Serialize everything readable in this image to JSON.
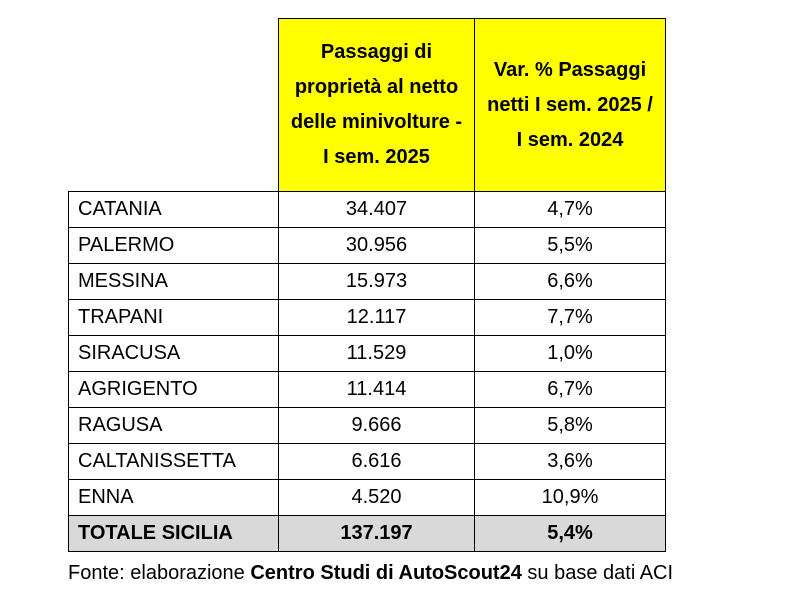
{
  "table": {
    "headers": [
      "Passaggi di proprietà al netto delle minivolture - I sem. 2025",
      "Var. % Passaggi netti I sem. 2025 / I sem. 2024"
    ],
    "rows": [
      [
        "CATANIA",
        "34.407",
        "4,7%"
      ],
      [
        "PALERMO",
        "30.956",
        "5,5%"
      ],
      [
        "MESSINA",
        "15.973",
        "6,6%"
      ],
      [
        "TRAPANI",
        "12.117",
        "7,7%"
      ],
      [
        "SIRACUSA",
        "11.529",
        "1,0%"
      ],
      [
        "AGRIGENTO",
        "11.414",
        "6,7%"
      ],
      [
        "RAGUSA",
        "9.666",
        "5,8%"
      ],
      [
        "CALTANISSETTA",
        "6.616",
        "3,6%"
      ],
      [
        "ENNA",
        "4.520",
        "10,9%"
      ]
    ],
    "total": [
      "TOTALE SICILIA",
      "137.197",
      "5,4%"
    ]
  },
  "source": {
    "prefix": "Fonte: elaborazione",
    "bold": "Centro Studi di AutoScout24",
    "suffix": "su base dati ACI"
  }
}
